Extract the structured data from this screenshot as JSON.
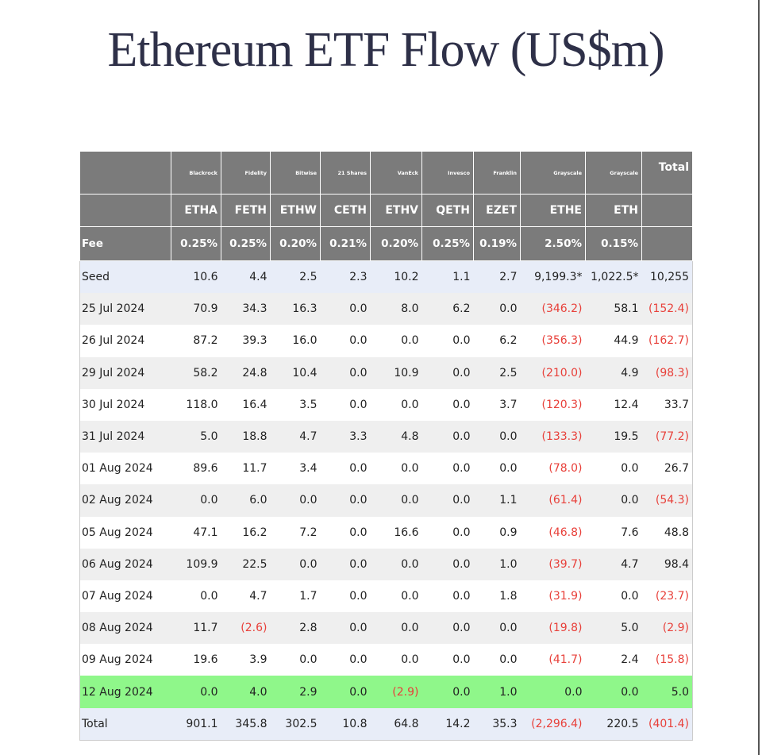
{
  "header": {
    "title": "Ethereum ETF Flow (US$m)"
  },
  "table": {
    "issuers": [
      "Blackrock",
      "Fidelity",
      "Bitwise",
      "21 Shares",
      "VanEck",
      "Invesco",
      "Franklin",
      "Grayscale",
      "Grayscale"
    ],
    "total_label": "Total",
    "tickers": [
      "ETHA",
      "FETH",
      "ETHW",
      "CETH",
      "ETHV",
      "QETH",
      "EZET",
      "ETHE",
      "ETH"
    ],
    "fee_label": "Fee",
    "fees": [
      "0.25%",
      "0.25%",
      "0.20%",
      "0.21%",
      "0.20%",
      "0.25%",
      "0.19%",
      "2.50%",
      "0.15%"
    ],
    "rows": [
      [
        "Seed",
        "10.6",
        "4.4",
        "2.5",
        "2.3",
        "10.2",
        "1.1",
        "2.7",
        "9,199.3*",
        "1,022.5*",
        "10,255"
      ],
      [
        "25 Jul 2024",
        "70.9",
        "34.3",
        "16.3",
        "0.0",
        "8.0",
        "6.2",
        "0.0",
        "(346.2)",
        "58.1",
        "(152.4)"
      ],
      [
        "26 Jul 2024",
        "87.2",
        "39.3",
        "16.0",
        "0.0",
        "0.0",
        "0.0",
        "6.2",
        "(356.3)",
        "44.9",
        "(162.7)"
      ],
      [
        "29 Jul 2024",
        "58.2",
        "24.8",
        "10.4",
        "0.0",
        "10.9",
        "0.0",
        "2.5",
        "(210.0)",
        "4.9",
        "(98.3)"
      ],
      [
        "30 Jul 2024",
        "118.0",
        "16.4",
        "3.5",
        "0.0",
        "0.0",
        "0.0",
        "3.7",
        "(120.3)",
        "12.4",
        "33.7"
      ],
      [
        "31 Jul 2024",
        "5.0",
        "18.8",
        "4.7",
        "3.3",
        "4.8",
        "0.0",
        "0.0",
        "(133.3)",
        "19.5",
        "(77.2)"
      ],
      [
        "01 Aug 2024",
        "89.6",
        "11.7",
        "3.4",
        "0.0",
        "0.0",
        "0.0",
        "0.0",
        "(78.0)",
        "0.0",
        "26.7"
      ],
      [
        "02 Aug 2024",
        "0.0",
        "6.0",
        "0.0",
        "0.0",
        "0.0",
        "0.0",
        "1.1",
        "(61.4)",
        "0.0",
        "(54.3)"
      ],
      [
        "05 Aug 2024",
        "47.1",
        "16.2",
        "7.2",
        "0.0",
        "16.6",
        "0.0",
        "0.9",
        "(46.8)",
        "7.6",
        "48.8"
      ],
      [
        "06 Aug 2024",
        "109.9",
        "22.5",
        "0.0",
        "0.0",
        "0.0",
        "0.0",
        "1.0",
        "(39.7)",
        "4.7",
        "98.4"
      ],
      [
        "07 Aug 2024",
        "0.0",
        "4.7",
        "1.7",
        "0.0",
        "0.0",
        "0.0",
        "1.8",
        "(31.9)",
        "0.0",
        "(23.7)"
      ],
      [
        "08 Aug 2024",
        "11.7",
        "(2.6)",
        "2.8",
        "0.0",
        "0.0",
        "0.0",
        "0.0",
        "(19.8)",
        "5.0",
        "(2.9)"
      ],
      [
        "09 Aug 2024",
        "19.6",
        "3.9",
        "0.0",
        "0.0",
        "0.0",
        "0.0",
        "0.0",
        "(41.7)",
        "2.4",
        "(15.8)"
      ],
      [
        "12 Aug 2024",
        "0.0",
        "4.0",
        "2.9",
        "0.0",
        "(2.9)",
        "0.0",
        "1.0",
        "0.0",
        "0.0",
        "5.0"
      ],
      [
        "Total",
        "901.1",
        "345.8",
        "302.5",
        "10.8",
        "64.8",
        "14.2",
        "35.3",
        "(2,296.4)",
        "220.5",
        "(401.4)"
      ]
    ]
  }
}
